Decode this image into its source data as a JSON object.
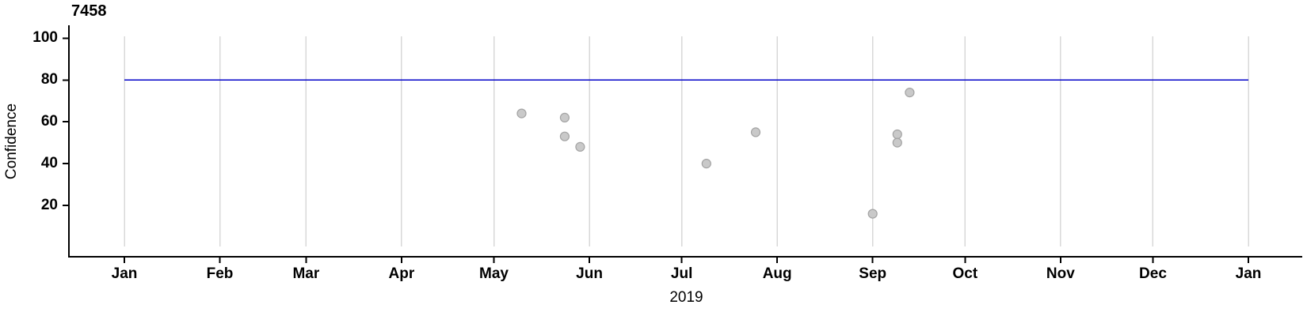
{
  "chart_data": {
    "type": "scatter",
    "title": "7458",
    "xlabel": "2019",
    "ylabel": "Confidence",
    "x_axis": {
      "start_date": "2019-01-01",
      "end_date": "2020-01-01",
      "total_days": 365,
      "tick_labels": [
        "Jan",
        "Feb",
        "Mar",
        "Apr",
        "May",
        "Jun",
        "Jul",
        "Aug",
        "Sep",
        "Oct",
        "Nov",
        "Dec",
        "Jan"
      ],
      "tick_days": [
        0,
        31,
        59,
        90,
        120,
        151,
        181,
        212,
        243,
        273,
        304,
        334,
        365
      ]
    },
    "y_axis": {
      "ticks": [
        20,
        40,
        60,
        80,
        100
      ],
      "range": [
        0,
        101
      ]
    },
    "grid": true,
    "legend": "none",
    "reference_line": {
      "y": 80
    },
    "points": [
      {
        "date": "2019-05-10",
        "confidence": 64
      },
      {
        "date": "2019-05-24",
        "confidence": 62
      },
      {
        "date": "2019-05-24",
        "confidence": 53
      },
      {
        "date": "2019-05-29",
        "confidence": 48
      },
      {
        "date": "2019-07-09",
        "confidence": 40
      },
      {
        "date": "2019-07-25",
        "confidence": 55
      },
      {
        "date": "2019-09-01",
        "confidence": 16
      },
      {
        "date": "2019-09-09",
        "confidence": 54
      },
      {
        "date": "2019-09-09",
        "confidence": 50
      },
      {
        "date": "2019-09-13",
        "confidence": 74
      }
    ],
    "colors": {
      "reference_line": "#0000C8",
      "grid": "#D8D8D8",
      "axis": "#000000",
      "point_fill": "#C9C9C9",
      "point_stroke": "#A3A3A3"
    },
    "point_radius": 5.5
  }
}
